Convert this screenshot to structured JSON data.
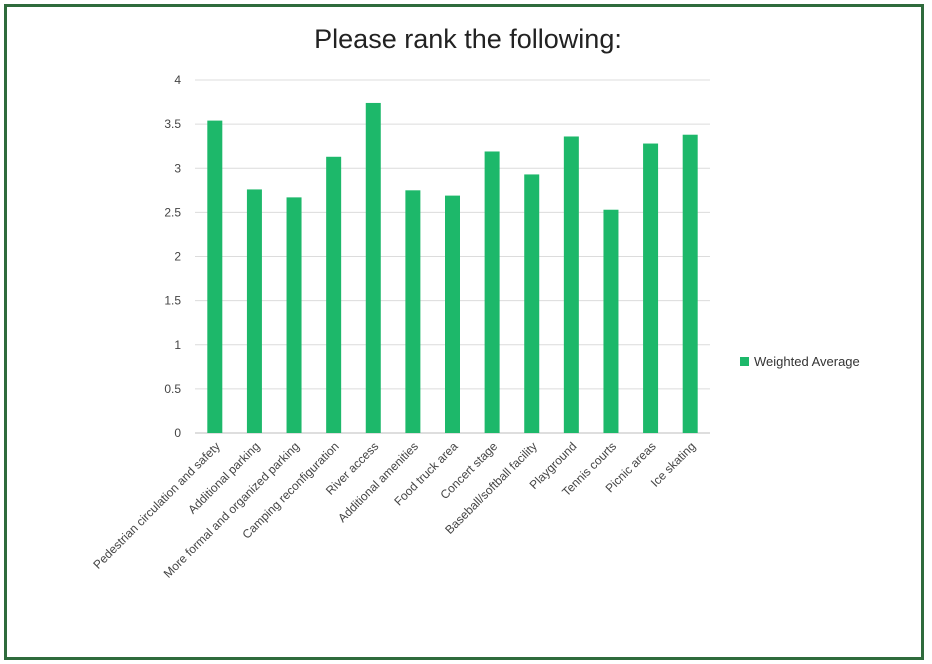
{
  "chart_data": {
    "type": "bar",
    "title": "Please rank the following:",
    "xlabel": "",
    "ylabel": "",
    "ylim": [
      0,
      4
    ],
    "yticks": [
      "0",
      "0.5",
      "1",
      "1.5",
      "2",
      "2.5",
      "3",
      "3.5",
      "4"
    ],
    "grid": true,
    "legend_position": "right",
    "categories": [
      "Pedestrian circulation and safety",
      "Additional parking",
      "More formal and organized parking",
      "Camping reconfiguration",
      "River access",
      "Additional amenities",
      "Food truck area",
      "Concert stage",
      "Baseball/softball facility",
      "Playground",
      "Tennis courts",
      "Picnic areas",
      "Ice skating"
    ],
    "series": [
      {
        "name": "Weighted Average",
        "color": "#1db86a",
        "values": [
          3.54,
          2.76,
          2.67,
          3.13,
          3.74,
          2.75,
          2.69,
          3.19,
          2.93,
          3.36,
          2.53,
          3.28,
          3.38
        ]
      }
    ]
  }
}
